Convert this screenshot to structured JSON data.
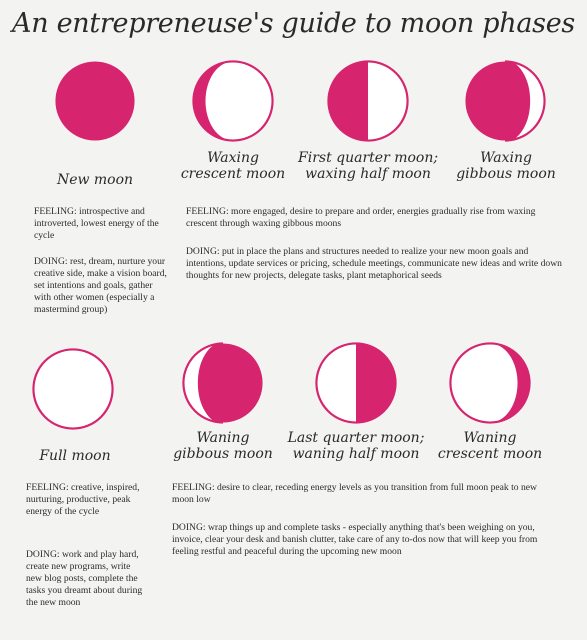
{
  "title": "An entrepreneuse's guide to moon phases",
  "colors": {
    "moon": "#d6246e",
    "outline": "#d6246e",
    "background": "#f3f3f1"
  },
  "top_row": {
    "moons": [
      {
        "key": "new",
        "icon": "new-moon-icon",
        "label_lines": [
          "New moon"
        ]
      },
      {
        "key": "waxing_crescent",
        "icon": "waxing-crescent-moon-icon",
        "label_lines": [
          "Waxing",
          "crescent moon"
        ]
      },
      {
        "key": "first_quarter",
        "icon": "first-quarter-moon-icon",
        "label_lines": [
          "First quarter moon;",
          "waxing half moon"
        ]
      },
      {
        "key": "waxing_gibbous",
        "icon": "waxing-gibbous-moon-icon",
        "label_lines": [
          "Waxing",
          "gibbous moon"
        ]
      }
    ],
    "left_feeling": "FEELING: introspective and introverted, lowest energy of the cycle",
    "left_doing": "DOING: rest, dream, nurture your creative side, make a vision board, set intentions and goals, gather with other women (especially a mastermind group)",
    "right_feeling": "FEELING: more engaged, desire to prepare and order, energies gradually rise from waxing crescent through waxing gibbous moons",
    "right_doing": "DOING: put in place the plans and structures needed to realize your new moon goals and intentions, update services or pricing, schedule meetings, communicate new ideas and write down thoughts for new projects, delegate tasks, plant metaphorical seeds"
  },
  "bottom_row": {
    "moons": [
      {
        "key": "full",
        "icon": "full-moon-icon",
        "label_lines": [
          "Full moon"
        ]
      },
      {
        "key": "waning_gibbous",
        "icon": "waning-gibbous-moon-icon",
        "label_lines": [
          "Waning",
          "gibbous moon"
        ]
      },
      {
        "key": "last_quarter",
        "icon": "last-quarter-moon-icon",
        "label_lines": [
          "Last quarter moon;",
          "waning half moon"
        ]
      },
      {
        "key": "waning_crescent",
        "icon": "waning-crescent-moon-icon",
        "label_lines": [
          "Waning",
          "crescent moon"
        ]
      }
    ],
    "left_feeling": "FEELING: creative, inspired, nurturing, productive, peak energy of the cycle",
    "left_doing": "DOING: work and play hard, create new programs, write new blog posts, complete the tasks you dreamt about during the new moon",
    "right_feeling": "FEELING: desire to clear, receding energy levels as you transition from full moon peak to new moon low",
    "right_doing": "DOING: wrap things up and complete tasks - especially anything that's been weighing on you, invoice, clear your desk and banish clutter, take care of any to-dos now that will keep you from feeling restful and peaceful during the upcoming new moon"
  }
}
